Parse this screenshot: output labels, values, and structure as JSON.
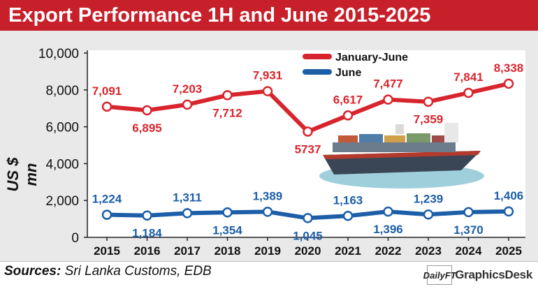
{
  "title": "Export Performance 1H and June 2015-2025",
  "sources_label": "Sources:",
  "sources_text": " Sri Lanka Customs, EDB",
  "credit": {
    "logo_text": "DailyFT",
    "desk_text": "GraphicsDesk"
  },
  "colors": {
    "title_bg": "#c8202a",
    "series_red": "#d8252d",
    "series_blue": "#1c5ea8"
  },
  "chart_data": {
    "type": "line",
    "x": [
      "2015",
      "2016",
      "2017",
      "2018",
      "2019",
      "2020",
      "2021",
      "2022",
      "2023",
      "2024",
      "2025"
    ],
    "ylabel": "US $ mn",
    "ylim": [
      0,
      10000
    ],
    "yticks": [
      "0",
      "2,000",
      "4,000",
      "6,000",
      "8,000",
      "10,000"
    ],
    "legend_position": "top-center",
    "grid": false,
    "series": [
      {
        "name": "January-June",
        "values": [
          7091,
          6895,
          7203,
          7712,
          7931,
          5737,
          6617,
          7477,
          7359,
          7841,
          8338
        ],
        "labels": [
          "7,091",
          "6,895",
          "7,203",
          "7,712",
          "7,931",
          "5737",
          "6,617",
          "7,477",
          "7,359",
          "7,841",
          "8,338"
        ]
      },
      {
        "name": "June",
        "values": [
          1224,
          1184,
          1311,
          1354,
          1389,
          1045,
          1163,
          1396,
          1239,
          1370,
          1406
        ],
        "labels": [
          "1,224",
          "1,184",
          "1,311",
          "1,354",
          "1,389",
          "1,045",
          "1,163",
          "1,396",
          "1,239",
          "1,370",
          "1,406"
        ]
      }
    ]
  }
}
